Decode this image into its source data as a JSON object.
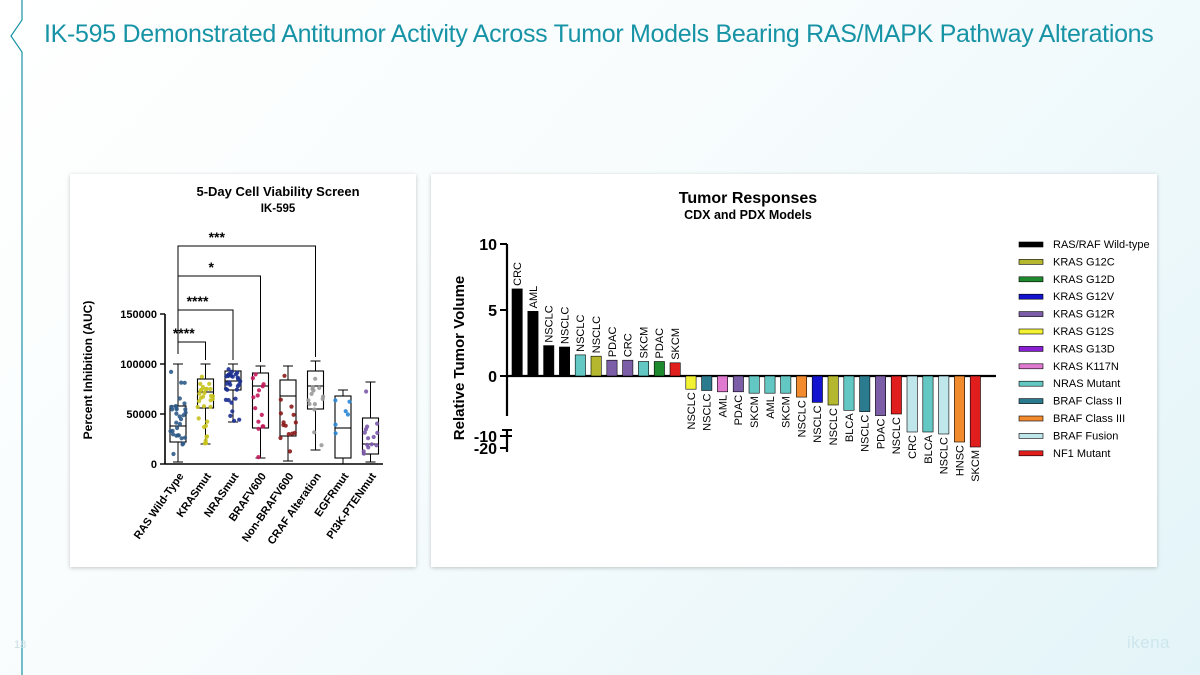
{
  "slide": {
    "title": "IK-595 Demonstrated Antitumor Activity Across Tumor Models Bearing RAS/MAPK Pathway Alterations",
    "page_number": "18",
    "logo_text": "ikena",
    "accent_color": "#1793a6"
  },
  "chart_data": [
    {
      "type": "box",
      "title": "5-Day Cell Viability Screen",
      "subtitle": "IK-595",
      "ylabel": "Percent Inhibition (AUC)",
      "ylim": [
        0,
        150000
      ],
      "yticks": [
        0,
        50000,
        100000,
        150000
      ],
      "categories": [
        "RAS Wild-Type",
        "KRASmut",
        "NRASmut",
        "BRAFV600",
        "Non-BRAFV600",
        "CRAF Alteration",
        "EGFRmut",
        "PI3K-PTENmut"
      ],
      "colors": [
        "#2e5a87",
        "#c8c31e",
        "#1b2f8f",
        "#c2185b",
        "#8b1a1a",
        "#9a9a9a",
        "#2a86d4",
        "#7a5aa8"
      ],
      "boxes": [
        {
          "min": 2000,
          "q1": 22000,
          "median": 38000,
          "q3": 58000,
          "max": 100000
        },
        {
          "min": 20000,
          "q1": 56000,
          "median": 72000,
          "q3": 85000,
          "max": 100000
        },
        {
          "min": 42000,
          "q1": 74000,
          "median": 83000,
          "q3": 93000,
          "max": 100000
        },
        {
          "min": 6000,
          "q1": 36000,
          "median": 78000,
          "q3": 91000,
          "max": 98000
        },
        {
          "min": 3000,
          "q1": 28000,
          "median": 68000,
          "q3": 84000,
          "max": 98000
        },
        {
          "min": 14000,
          "q1": 55000,
          "median": 78000,
          "q3": 93000,
          "max": 103000
        },
        {
          "min": 0,
          "q1": 6000,
          "median": 36000,
          "q3": 68000,
          "max": 74000
        },
        {
          "min": 2000,
          "q1": 10000,
          "median": 20000,
          "q3": 46000,
          "max": 82000
        }
      ],
      "significance": [
        {
          "label": "****",
          "from": "RAS Wild-Type",
          "to": "KRASmut",
          "y": 122000
        },
        {
          "label": "****",
          "from": "RAS Wild-Type",
          "to": "NRASmut",
          "y": 154000
        },
        {
          "label": "*",
          "from": "RAS Wild-Type",
          "to": "BRAFV600",
          "y": 188000
        },
        {
          "label": "***",
          "from": "RAS Wild-Type",
          "to": "CRAF Alteration",
          "y": 218000
        }
      ]
    },
    {
      "type": "bar",
      "title": "Tumor Responses",
      "subtitle": "CDX and PDX Models",
      "ylabel": "Relative Tumor Volume",
      "ylim": [
        -20,
        10
      ],
      "yticks": [
        10,
        5,
        0,
        -10,
        -20
      ],
      "axis_break": true,
      "categories": [
        "CRC",
        "AML",
        "NSCLC",
        "NSCLC",
        "NSCLC",
        "NSCLC",
        "PDAC",
        "CRC",
        "SKCM",
        "PDAC",
        "SKCM",
        "NSCLC",
        "NSCLC",
        "AML",
        "PDAC",
        "SKCM",
        "AML",
        "SKCM",
        "NSCLC",
        "NSCLC",
        "NSCLC",
        "BLCA",
        "NSCLC",
        "PDAC",
        "NSCLC",
        "CRC",
        "BLCA",
        "NSCLC",
        "HNSC",
        "SKCM"
      ],
      "values": [
        6.6,
        4.9,
        2.3,
        2.2,
        1.6,
        1.5,
        1.2,
        1.2,
        1.1,
        1.1,
        1.0,
        -1.0,
        -1.1,
        -1.2,
        -1.2,
        -1.3,
        -1.3,
        -1.3,
        -1.6,
        -2.0,
        -2.2,
        -2.6,
        -2.7,
        -3.0,
        -5.0,
        -8.0,
        -8.6,
        -9.0,
        -10.0,
        -12.0
      ],
      "genotypes": [
        "RAS/RAF Wild-type",
        "RAS/RAF Wild-type",
        "RAS/RAF Wild-type",
        "RAS/RAF Wild-type",
        "NRAS Mutant",
        "KRAS G12C",
        "KRAS G12R",
        "KRAS G12R",
        "NRAS Mutant",
        "KRAS G12D",
        "NF1 Mutant",
        "KRAS G12S",
        "BRAF Class II",
        "KRAS K117N",
        "KRAS G12R",
        "NRAS Mutant",
        "NRAS Mutant",
        "NRAS Mutant",
        "BRAF Class III",
        "KRAS G12V",
        "KRAS G12C",
        "NRAS Mutant",
        "BRAF Class II",
        "KRAS G12R",
        "NF1 Mutant",
        "BRAF Fusion",
        "NRAS Mutant",
        "BRAF Fusion",
        "BRAF Class III",
        "NF1 Mutant"
      ],
      "legend": [
        {
          "label": "RAS/RAF Wild-type",
          "color": "#000000"
        },
        {
          "label": "KRAS G12C",
          "color": "#b5b82e"
        },
        {
          "label": "KRAS G12D",
          "color": "#1e8a2e"
        },
        {
          "label": "KRAS G12V",
          "color": "#1414d0"
        },
        {
          "label": "KRAS G12R",
          "color": "#7b5ea7"
        },
        {
          "label": "KRAS G12S",
          "color": "#f2f233"
        },
        {
          "label": "KRAS G13D",
          "color": "#8b1fd6"
        },
        {
          "label": "KRAS K117N",
          "color": "#e07ad0"
        },
        {
          "label": "NRAS Mutant",
          "color": "#63c7c4"
        },
        {
          "label": "BRAF Class II",
          "color": "#2b7b8f"
        },
        {
          "label": "BRAF Class III",
          "color": "#f28a2e"
        },
        {
          "label": "BRAF Fusion",
          "color": "#bfe6ea"
        },
        {
          "label": "NF1 Mutant",
          "color": "#e01e1e"
        }
      ]
    }
  ]
}
